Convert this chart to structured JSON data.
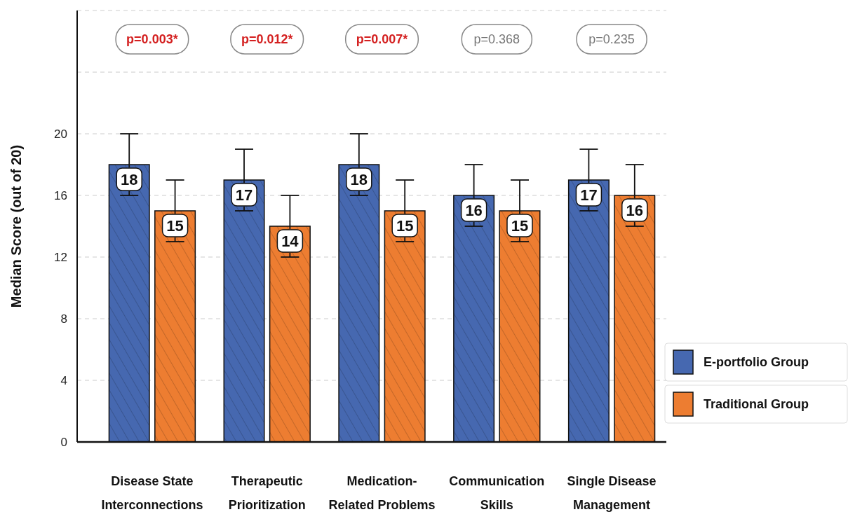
{
  "chart_data": {
    "type": "bar",
    "ylabel": "Median Score (out of 20)",
    "categories": [
      "Disease State Interconnections",
      "Therapeutic Prioritization",
      "Medication-Related Problems",
      "Communication Skills",
      "Single Disease Management"
    ],
    "series": [
      {
        "name": "E-portfolio Group",
        "color": "#4668b0",
        "values": [
          18,
          17,
          18,
          16,
          17
        ],
        "errors": [
          2,
          2,
          2,
          2,
          2
        ]
      },
      {
        "name": "Traditional Group",
        "color": "#ed7d31",
        "values": [
          15,
          14,
          15,
          15,
          16
        ],
        "errors": [
          2,
          2,
          2,
          2,
          2
        ]
      }
    ],
    "ylim": [
      0,
      28
    ],
    "yticks": [
      0,
      4,
      8,
      12,
      16,
      20,
      {
        "value": 24,
        "label": null
      },
      {
        "value": 28,
        "label": null
      }
    ],
    "grid": "y",
    "legend": "right",
    "data_labels": true,
    "annotations": [
      "p=0.003*",
      "p=0.012*",
      "p=0.007*",
      "p=0.368",
      "p=0.235"
    ]
  }
}
